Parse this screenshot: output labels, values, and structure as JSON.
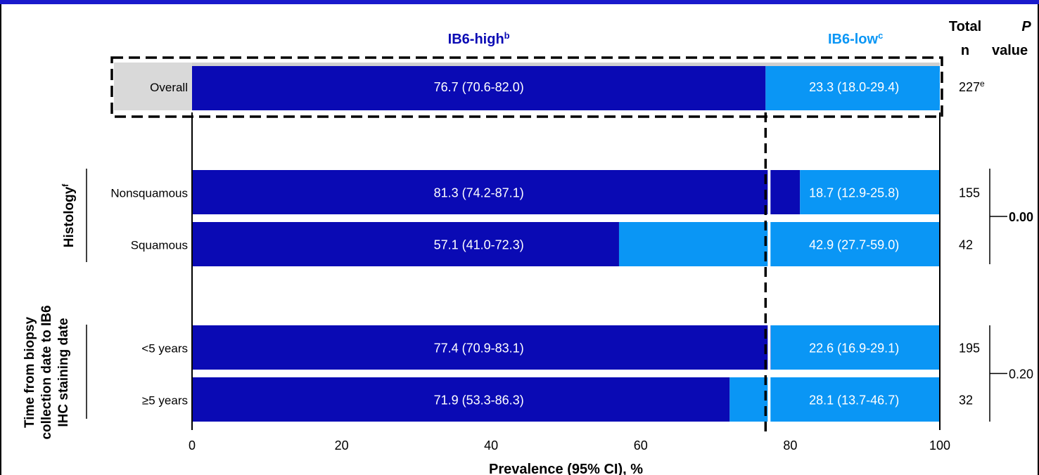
{
  "figure_title": "",
  "chart_data": {
    "type": "bar",
    "orientation": "horizontal",
    "stacked": true,
    "xlabel": "Prevalence (95% CI), %",
    "xlim": [
      0,
      100
    ],
    "x_ticks": [
      "0",
      "20",
      "40",
      "60",
      "80",
      "100"
    ],
    "x_tick_values": [
      0,
      20,
      40,
      60,
      80,
      100
    ],
    "threshold_line": 76.7,
    "column_headers": {
      "high": {
        "text": "IB6-high",
        "sup": "b"
      },
      "low": {
        "text": "IB6-low",
        "sup": "c"
      },
      "total_line1": "Total",
      "total_line2": "n",
      "p_line1": "P",
      "p_line2": "value"
    },
    "colors": {
      "high": "#0a0ab4",
      "low": "#0a96f5",
      "overall_label_bg": "#d9d9d9",
      "title_band": "#1a1acc"
    },
    "groups": [
      {
        "name": "Histology",
        "sup": "f",
        "name_lines": [
          "Histology"
        ],
        "p_value": "0.00"
      },
      {
        "name": "Time from biopsy collection date to IB6 IHC staining date",
        "sup": "",
        "name_lines": [
          "Time from biopsy",
          "collection date to IB6",
          "IHC staining date"
        ],
        "p_value": "0.20"
      }
    ],
    "rows": [
      {
        "label": "Overall",
        "group": null,
        "high": 76.7,
        "high_ci": "76.7 (70.6-82.0)",
        "low": 23.3,
        "low_ci": "23.3 (18.0-29.4)",
        "n": "227",
        "n_sup": "e"
      },
      {
        "label": "Nonsquamous",
        "group": 0,
        "high": 81.3,
        "high_ci": "81.3 (74.2-87.1)",
        "low": 18.7,
        "low_ci": "18.7 (12.9-25.8)",
        "n": "155",
        "n_sup": ""
      },
      {
        "label": "Squamous",
        "group": 0,
        "high": 57.1,
        "high_ci": "57.1 (41.0-72.3)",
        "low": 42.9,
        "low_ci": "42.9 (27.7-59.0)",
        "n": "42",
        "n_sup": ""
      },
      {
        "label": "<5 years",
        "group": 1,
        "high": 77.4,
        "high_ci": "77.4 (70.9-83.1)",
        "low": 22.6,
        "low_ci": "22.6 (16.9-29.1)",
        "n": "195",
        "n_sup": ""
      },
      {
        "label": "≥5 years",
        "group": 1,
        "high": 71.9,
        "high_ci": "71.9 (53.3-86.3)",
        "low": 28.1,
        "low_ci": "28.1 (13.7-46.7)",
        "n": "32",
        "n_sup": ""
      }
    ]
  }
}
